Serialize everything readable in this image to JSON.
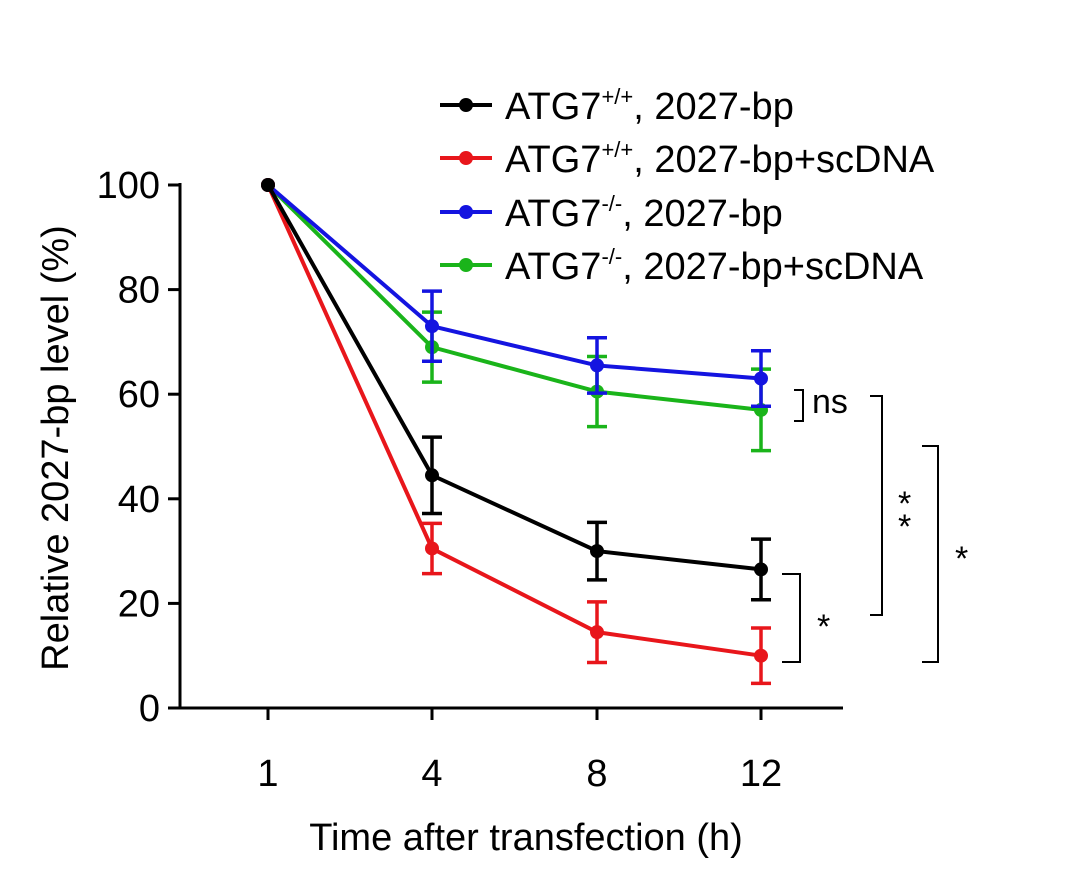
{
  "chart_data": {
    "type": "line",
    "title": "",
    "xlabel": "Time after  transfection  (h)",
    "ylabel": "Relative 2027-bp  level  (%)",
    "x_categories": [
      "1",
      "4",
      "8",
      "12"
    ],
    "ylim": [
      0,
      100
    ],
    "yticks": [
      "0",
      "20",
      "40",
      "60",
      "80",
      "100"
    ],
    "grid": false,
    "legend_position": "top-right",
    "series": [
      {
        "legend_base": "ATG7",
        "legend_sup": "+/+",
        "legend_rest": ",  2027-bp",
        "color": "#000000",
        "values": [
          100,
          44.5,
          30,
          26.5
        ],
        "errors": [
          0,
          7.3,
          5.5,
          5.8
        ]
      },
      {
        "legend_base": "ATG7",
        "legend_sup": "+/+",
        "legend_rest": ",  2027-bp+scDNA",
        "color": "#e8161b",
        "values": [
          100,
          30.5,
          14.5,
          10
        ],
        "errors": [
          0,
          4.8,
          5.8,
          5.3
        ]
      },
      {
        "legend_base": "ATG7",
        "legend_sup": "-/-",
        "legend_rest": ",  2027-bp",
        "color": "#1414e0",
        "values": [
          100,
          73,
          65.5,
          63
        ],
        "errors": [
          0,
          6.7,
          5.3,
          5.3
        ]
      },
      {
        "legend_base": "ATG7",
        "legend_sup": "-/-",
        "legend_rest": ",  2027-bp+scDNA",
        "color": "#1ab41a",
        "values": [
          100,
          69,
          60.5,
          57
        ],
        "errors": [
          0,
          6.7,
          6.7,
          7.8
        ]
      }
    ],
    "annotations": [
      {
        "label": "ns",
        "between": [
          2,
          3
        ]
      },
      {
        "label": "*",
        "between": [
          0,
          1
        ]
      },
      {
        "label": "* *",
        "between": [
          3,
          0
        ]
      },
      {
        "label": "*",
        "between": [
          2,
          1
        ]
      }
    ]
  }
}
